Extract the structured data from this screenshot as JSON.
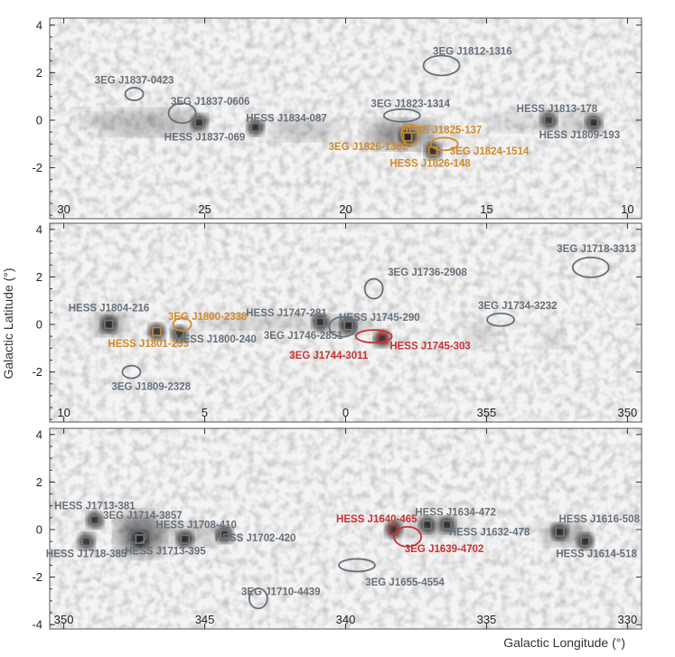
{
  "colors": {
    "gray_source": "#66707a",
    "orange_source": "#d08a2a",
    "red_source": "#c83232",
    "frame": "#555555"
  },
  "chart_data": {
    "type": "heatmap",
    "title": "",
    "xlabel": "Galactic Longitude (°)",
    "ylabel": "Galactic Latitude (°)",
    "colormap": "grayscale",
    "grid": false,
    "panels": [
      {
        "xlim": [
          30.5,
          9.5
        ],
        "ylim": [
          -4,
          4.2
        ],
        "xticks": [
          30,
          25,
          20,
          15,
          10
        ],
        "yticks": [
          -2,
          0,
          2,
          4
        ],
        "ytick_labels": [
          "-2",
          "0",
          "2",
          "4"
        ],
        "hess_sources": [
          {
            "name": "HESS J1837-069",
            "l": 25.2,
            "b": -0.1,
            "color": "gray",
            "label_l": 25.0,
            "label_b": -0.7
          },
          {
            "name": "HESS J1834-087",
            "l": 23.2,
            "b": -0.3,
            "color": "gray",
            "label_l": 22.1,
            "label_b": 0.1
          },
          {
            "name": "HESS J1825-137",
            "l": 17.8,
            "b": -0.7,
            "color": "orange",
            "label_l": 16.6,
            "label_b": -0.4
          },
          {
            "name": "HESS J1826-148",
            "l": 16.9,
            "b": -1.3,
            "color": "orange",
            "label_l": 17.0,
            "label_b": -1.8
          },
          {
            "name": "HESS J1813-178",
            "l": 12.8,
            "b": -0.0,
            "color": "gray",
            "label_l": 12.5,
            "label_b": 0.5
          },
          {
            "name": "HESS J1809-193",
            "l": 11.2,
            "b": -0.1,
            "color": "gray",
            "label_l": 11.7,
            "label_b": -0.6
          }
        ],
        "egret_sources": [
          {
            "name": "3EG J1837-0423",
            "l": 27.5,
            "b": 1.1,
            "color": "gray",
            "label_l": 27.5,
            "label_b": 1.7
          },
          {
            "name": "3EG J1837-0606",
            "l": 25.8,
            "b": 0.3,
            "color": "gray",
            "label_l": 24.8,
            "label_b": 0.8
          },
          {
            "name": "3EG J1823-1314",
            "l": 18.0,
            "b": 0.2,
            "color": "gray",
            "label_l": 17.7,
            "label_b": 0.7
          },
          {
            "name": "3EG J1826-1302",
            "l": 17.7,
            "b": -0.6,
            "color": "orange",
            "label_l": 19.2,
            "label_b": -1.1
          },
          {
            "name": "3EG J1824-1514",
            "l": 16.5,
            "b": -1.0,
            "color": "orange",
            "label_l": 14.9,
            "label_b": -1.3
          },
          {
            "name": "3EG J1812-1316",
            "l": 16.6,
            "b": 2.3,
            "color": "gray",
            "label_l": 15.5,
            "label_b": 2.9
          }
        ]
      },
      {
        "xlim": [
          10.5,
          349.5
        ],
        "ylim": [
          -4,
          4.2
        ],
        "xticks": [
          10,
          5,
          0,
          355,
          350
        ],
        "yticks": [
          -2,
          0,
          2,
          4
        ],
        "ytick_labels": [
          "-2",
          "0",
          "2",
          "4"
        ],
        "hess_sources": [
          {
            "name": "HESS J1804-216",
            "l": 8.4,
            "b": -0.0,
            "color": "gray",
            "label_l": 8.4,
            "label_b": 0.7
          },
          {
            "name": "HESS J1801-233",
            "l": 6.7,
            "b": -0.3,
            "color": "orange",
            "label_l": 7.0,
            "label_b": -0.8
          },
          {
            "name": "HESS J1800-240",
            "l": 5.9,
            "b": -0.4,
            "color": "gray",
            "label_l": 4.6,
            "label_b": -0.6
          },
          {
            "name": "HESS J1747-281",
            "l": 0.9,
            "b": 0.1,
            "color": "gray",
            "label_l": 2.1,
            "label_b": 0.5
          },
          {
            "name": "HESS J1745-290",
            "l": 359.9,
            "b": -0.05,
            "color": "gray",
            "label_l": 358.8,
            "label_b": 0.3
          },
          {
            "name": "HESS J1745-303",
            "l": 358.7,
            "b": -0.6,
            "color": "red",
            "label_l": 357.0,
            "label_b": -0.9
          }
        ],
        "egret_sources": [
          {
            "name": "3EG J1800-2338",
            "l": 5.8,
            "b": 0.0,
            "color": "orange",
            "label_l": 4.9,
            "label_b": 0.35
          },
          {
            "name": "3EG J1746-2851",
            "l": 0.1,
            "b": -0.1,
            "color": "gray",
            "label_l": 1.5,
            "label_b": -0.45
          },
          {
            "name": "3EG J1744-3011",
            "l": 359.0,
            "b": -0.5,
            "color": "red",
            "label_l": 360.6,
            "label_b": -1.3
          },
          {
            "name": "3EG J1736-2908",
            "l": 359.0,
            "b": 1.5,
            "color": "gray",
            "label_l": 357.1,
            "label_b": 2.2
          },
          {
            "name": "3EG J1734-3232",
            "l": 354.5,
            "b": 0.2,
            "color": "gray",
            "label_l": 353.9,
            "label_b": 0.8
          },
          {
            "name": "3EG J1718-3313",
            "l": 351.3,
            "b": 2.4,
            "color": "gray",
            "label_l": 351.1,
            "label_b": 3.2
          },
          {
            "name": "3EG J1809-2328",
            "l": 7.6,
            "b": -2.0,
            "color": "gray",
            "label_l": 6.9,
            "label_b": -2.6
          }
        ]
      },
      {
        "xlim": [
          350.5,
          329.5
        ],
        "ylim": [
          -4,
          4.2
        ],
        "xticks": [
          350,
          345,
          340,
          335,
          330
        ],
        "yticks": [
          -4,
          -2,
          0,
          2,
          4
        ],
        "ytick_labels": [
          "-4",
          "-2",
          "0",
          "2",
          "4"
        ],
        "hess_sources": [
          {
            "name": "HESS J1713-381",
            "l": 348.9,
            "b": 0.4,
            "color": "gray",
            "label_l": 348.9,
            "label_b": 1.0
          },
          {
            "name": "HESS J1718-385",
            "l": 349.2,
            "b": -0.5,
            "color": "gray",
            "label_l": 349.2,
            "label_b": -1.0
          },
          {
            "name": "HESS J1713-395",
            "l": 347.3,
            "b": -0.4,
            "color": "gray",
            "label_l": 346.4,
            "label_b": -0.9
          },
          {
            "name": "HESS J1708-410",
            "l": 345.7,
            "b": -0.4,
            "color": "gray",
            "label_l": 345.3,
            "label_b": 0.2
          },
          {
            "name": "HESS J1702-420",
            "l": 344.3,
            "b": -0.2,
            "color": "gray",
            "label_l": 343.2,
            "label_b": -0.35
          },
          {
            "name": "HESS J1640-465",
            "l": 338.3,
            "b": 0.0,
            "color": "red",
            "label_l": 338.9,
            "label_b": 0.45
          },
          {
            "name": "HESS J1634-472",
            "l": 337.1,
            "b": 0.2,
            "color": "gray",
            "label_l": 336.1,
            "label_b": 0.75
          },
          {
            "name": "HESS J1632-478",
            "l": 336.4,
            "b": 0.2,
            "color": "gray",
            "label_l": 334.9,
            "label_b": -0.1
          },
          {
            "name": "HESS J1616-508",
            "l": 332.4,
            "b": -0.1,
            "color": "gray",
            "label_l": 331.0,
            "label_b": 0.45
          },
          {
            "name": "HESS J1614-518",
            "l": 331.5,
            "b": -0.5,
            "color": "gray",
            "label_l": 331.1,
            "label_b": -1.0
          }
        ],
        "egret_sources": [
          {
            "name": "3EG J1714-3857",
            "l": 347.4,
            "b": -0.3,
            "color": "gray",
            "label_l": 347.2,
            "label_b": 0.6
          },
          {
            "name": "3EG J1639-4702",
            "l": 337.8,
            "b": -0.3,
            "color": "red",
            "label_l": 336.5,
            "label_b": -0.8
          },
          {
            "name": "3EG J1655-4554",
            "l": 339.6,
            "b": -1.5,
            "color": "gray",
            "label_l": 337.9,
            "label_b": -2.2
          },
          {
            "name": "3EG J1710-4439",
            "l": 343.1,
            "b": -2.9,
            "color": "gray",
            "label_l": 342.3,
            "label_b": -2.6
          }
        ]
      }
    ]
  }
}
